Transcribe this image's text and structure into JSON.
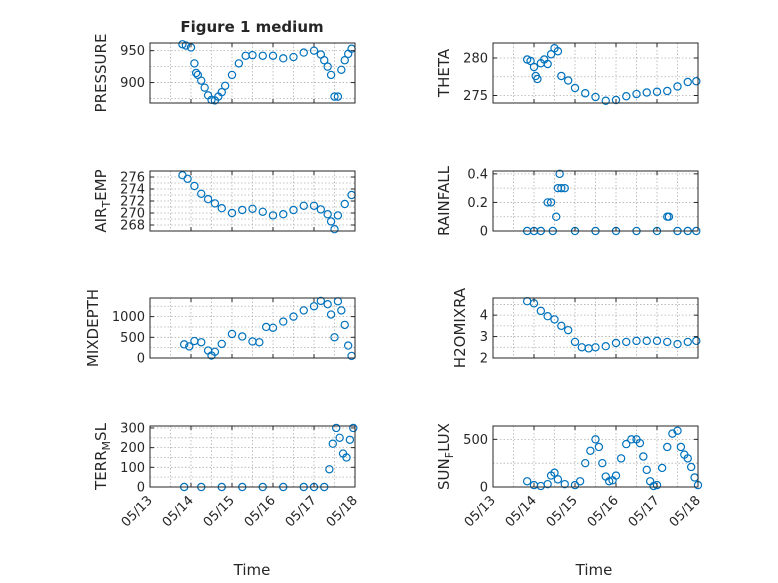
{
  "figure": {
    "title": "Figure 1 medium",
    "marker_color": "#0072BD",
    "x_axis": {
      "label": "Time",
      "range": [
        "05/13",
        "05/18"
      ],
      "ticks": [
        "05/13",
        "05/14",
        "05/15",
        "05/16",
        "05/17",
        "05/18"
      ],
      "tick_label_rotation_deg": -45
    },
    "grid": "dotted, major and minor"
  },
  "chart_data": [
    {
      "type": "scatter",
      "id": "pressure",
      "ylabel": "PRESSURE",
      "ylabel_sub": "",
      "ylim": [
        868,
        962
      ],
      "yticks": [
        900,
        950
      ],
      "ytick_labels": [
        "900",
        "950"
      ],
      "x": [
        "05/13 19:00",
        "05/13 21:00",
        "05/14 00:00",
        "05/14 02:00",
        "05/14 03:00",
        "05/14 04:00",
        "05/14 06:00",
        "05/14 08:00",
        "05/14 10:00",
        "05/14 12:00",
        "05/14 14:00",
        "05/14 16:00",
        "05/14 18:00",
        "05/14 20:00",
        "05/15 00:00",
        "05/15 04:00",
        "05/15 08:00",
        "05/15 12:00",
        "05/15 18:00",
        "05/16 00:00",
        "05/16 06:00",
        "05/16 12:00",
        "05/16 18:00",
        "05/17 00:00",
        "05/17 04:00",
        "05/17 06:00",
        "05/17 08:00",
        "05/17 10:00",
        "05/17 12:00",
        "05/17 14:00",
        "05/17 16:00",
        "05/17 18:00",
        "05/17 20:00",
        "05/17 22:00"
      ],
      "y": [
        960,
        958,
        955,
        930,
        915,
        912,
        903,
        892,
        880,
        873,
        872,
        878,
        885,
        895,
        912,
        930,
        942,
        943,
        942,
        942,
        938,
        940,
        947,
        950,
        944,
        935,
        925,
        912,
        878,
        878,
        920,
        935,
        945,
        953
      ]
    },
    {
      "type": "scatter",
      "id": "theta",
      "ylabel": "THETA",
      "ylabel_sub": "",
      "ylim": [
        274,
        282
      ],
      "yticks": [
        275,
        280
      ],
      "ytick_labels": [
        "275",
        "280"
      ],
      "x": [
        "05/13 20:00",
        "05/13 22:00",
        "05/14 00:00",
        "05/14 01:00",
        "05/14 02:00",
        "05/14 04:00",
        "05/14 06:00",
        "05/14 08:00",
        "05/14 10:00",
        "05/14 12:00",
        "05/14 14:00",
        "05/14 16:00",
        "05/14 20:00",
        "05/15 00:00",
        "05/15 06:00",
        "05/15 12:00",
        "05/15 18:00",
        "05/16 00:00",
        "05/16 06:00",
        "05/16 12:00",
        "05/16 18:00",
        "05/17 00:00",
        "05/17 06:00",
        "05/17 12:00",
        "05/17 18:00",
        "05/17 23:00"
      ],
      "y": [
        279.8,
        279.6,
        278.8,
        277.6,
        277.2,
        279.3,
        279.8,
        279.2,
        280.5,
        281.3,
        280.9,
        277.6,
        277.0,
        276.0,
        275.3,
        274.8,
        274.3,
        274.4,
        274.9,
        275.2,
        275.4,
        275.5,
        275.6,
        276.2,
        276.8,
        276.9
      ]
    },
    {
      "type": "scatter",
      "id": "air_temp",
      "ylabel": "AIR",
      "ylabel_sub": "T",
      "ylabel_rest": "EMP",
      "ylim": [
        267,
        277
      ],
      "yticks": [
        268,
        270,
        272,
        274,
        276
      ],
      "ytick_labels": [
        "268",
        "270",
        "272",
        "274",
        "276"
      ],
      "x": [
        "05/13 19:00",
        "05/13 22:00",
        "05/14 02:00",
        "05/14 06:00",
        "05/14 10:00",
        "05/14 14:00",
        "05/14 18:00",
        "05/15 00:00",
        "05/15 06:00",
        "05/15 12:00",
        "05/15 18:00",
        "05/16 00:00",
        "05/16 06:00",
        "05/16 12:00",
        "05/16 18:00",
        "05/17 00:00",
        "05/17 04:00",
        "05/17 08:00",
        "05/17 10:00",
        "05/17 12:00",
        "05/17 14:00",
        "05/17 18:00",
        "05/17 22:00"
      ],
      "y": [
        276.3,
        275.7,
        274.5,
        273.2,
        272.3,
        271.6,
        270.8,
        270.0,
        270.5,
        270.7,
        270.2,
        269.6,
        269.8,
        270.5,
        271.2,
        271.2,
        270.6,
        269.8,
        268.6,
        267.3,
        269.6,
        271.5,
        273.0
      ]
    },
    {
      "type": "scatter",
      "id": "rainfall",
      "ylabel": "RAINFALL",
      "ylabel_sub": "",
      "ylim": [
        0,
        0.42
      ],
      "yticks": [
        0,
        0.2,
        0.4
      ],
      "ytick_labels": [
        "0",
        "0.2",
        "0.4"
      ],
      "x": [
        "05/13 20:00",
        "05/14 00:00",
        "05/14 04:00",
        "05/14 08:00",
        "05/14 10:00",
        "05/14 11:00",
        "05/14 13:00",
        "05/14 14:00",
        "05/14 15:00",
        "05/14 16:00",
        "05/14 18:00",
        "05/15 00:00",
        "05/15 12:00",
        "05/16 00:00",
        "05/16 12:00",
        "05/17 00:00",
        "05/17 06:00",
        "05/17 07:00",
        "05/17 12:00",
        "05/17 18:00",
        "05/17 23:00"
      ],
      "y": [
        0,
        0,
        0,
        0.2,
        0.2,
        0,
        0.1,
        0.3,
        0.4,
        0.3,
        0.3,
        0,
        0,
        0,
        0,
        0,
        0.1,
        0.1,
        0,
        0,
        0
      ]
    },
    {
      "type": "scatter",
      "id": "mixdepth",
      "ylabel": "MIXDEPTH",
      "ylabel_sub": "",
      "ylim": [
        0,
        1450
      ],
      "yticks": [
        0,
        500,
        1000
      ],
      "ytick_labels": [
        "0",
        "500",
        "1000"
      ],
      "x": [
        "05/13 20:00",
        "05/13 23:00",
        "05/14 02:00",
        "05/14 06:00",
        "05/14 10:00",
        "05/14 12:00",
        "05/14 14:00",
        "05/14 18:00",
        "05/15 00:00",
        "05/15 06:00",
        "05/15 12:00",
        "05/15 16:00",
        "05/15 20:00",
        "05/16 00:00",
        "05/16 06:00",
        "05/16 12:00",
        "05/16 18:00",
        "05/17 00:00",
        "05/17 04:00",
        "05/17 08:00",
        "05/17 10:00",
        "05/17 12:00",
        "05/17 14:00",
        "05/17 16:00",
        "05/17 18:00",
        "05/17 20:00",
        "05/17 22:00"
      ],
      "y": [
        330,
        280,
        410,
        380,
        180,
        60,
        150,
        340,
        580,
        520,
        400,
        380,
        750,
        730,
        880,
        1000,
        1150,
        1250,
        1380,
        1300,
        1050,
        500,
        1370,
        1150,
        800,
        300,
        50
      ]
    },
    {
      "type": "scatter",
      "id": "h2omixra",
      "ylabel": "H2OMIXRA",
      "ylabel_sub": "",
      "ylim": [
        2,
        4.8
      ],
      "yticks": [
        2,
        3,
        4
      ],
      "ytick_labels": [
        "2",
        "3",
        "4"
      ],
      "x": [
        "05/13 20:00",
        "05/14 00:00",
        "05/14 04:00",
        "05/14 08:00",
        "05/14 12:00",
        "05/14 16:00",
        "05/14 20:00",
        "05/15 00:00",
        "05/15 04:00",
        "05/15 08:00",
        "05/15 12:00",
        "05/15 18:00",
        "05/16 00:00",
        "05/16 06:00",
        "05/16 12:00",
        "05/16 18:00",
        "05/17 00:00",
        "05/17 06:00",
        "05/17 12:00",
        "05/17 18:00",
        "05/17 23:00"
      ],
      "y": [
        4.65,
        4.55,
        4.2,
        3.95,
        3.8,
        3.5,
        3.3,
        2.75,
        2.5,
        2.45,
        2.5,
        2.55,
        2.7,
        2.75,
        2.8,
        2.8,
        2.8,
        2.75,
        2.65,
        2.75,
        2.8
      ]
    },
    {
      "type": "scatter",
      "id": "terr_msl",
      "ylabel": "TERR",
      "ylabel_sub": "M",
      "ylabel_rest": "SL",
      "ylim": [
        0,
        310
      ],
      "yticks": [
        0,
        100,
        200,
        300
      ],
      "ytick_labels": [
        "0",
        "100",
        "200",
        "300"
      ],
      "x": [
        "05/13 20:00",
        "05/14 06:00",
        "05/14 18:00",
        "05/15 06:00",
        "05/15 18:00",
        "05/16 06:00",
        "05/16 18:00",
        "05/17 00:00",
        "05/17 06:00",
        "05/17 09:00",
        "05/17 11:00",
        "05/17 13:00",
        "05/17 15:00",
        "05/17 17:00",
        "05/17 19:00",
        "05/17 21:00",
        "05/17 23:00"
      ],
      "y": [
        0,
        0,
        0,
        0,
        0,
        0,
        0,
        0,
        0,
        90,
        220,
        300,
        250,
        170,
        150,
        240,
        300
      ]
    },
    {
      "type": "scatter",
      "id": "sun_flux",
      "ylabel": "SUN",
      "ylabel_sub": "F",
      "ylabel_rest": "LUX",
      "ylim": [
        0,
        640
      ],
      "yticks": [
        0,
        500
      ],
      "ytick_labels": [
        "0",
        "500"
      ],
      "x": [
        "05/13 20:00",
        "05/14 00:00",
        "05/14 04:00",
        "05/14 08:00",
        "05/14 10:00",
        "05/14 12:00",
        "05/14 14:00",
        "05/14 18:00",
        "05/15 00:00",
        "05/15 03:00",
        "05/15 06:00",
        "05/15 09:00",
        "05/15 12:00",
        "05/15 14:00",
        "05/15 16:00",
        "05/15 18:00",
        "05/15 20:00",
        "05/15 22:00",
        "05/16 00:00",
        "05/16 03:00",
        "05/16 06:00",
        "05/16 09:00",
        "05/16 12:00",
        "05/16 14:00",
        "05/16 16:00",
        "05/16 18:00",
        "05/16 20:00",
        "05/16 22:00",
        "05/17 00:00",
        "05/17 03:00",
        "05/17 06:00",
        "05/17 09:00",
        "05/17 12:00",
        "05/17 14:00",
        "05/17 16:00",
        "05/17 18:00",
        "05/17 20:00",
        "05/17 22:00",
        "05/18 00:00"
      ],
      "y": [
        60,
        20,
        10,
        30,
        120,
        150,
        80,
        30,
        20,
        60,
        250,
        380,
        500,
        420,
        250,
        110,
        60,
        70,
        120,
        300,
        450,
        500,
        500,
        460,
        320,
        180,
        60,
        10,
        20,
        200,
        420,
        560,
        590,
        420,
        340,
        300,
        210,
        100,
        20
      ]
    }
  ]
}
